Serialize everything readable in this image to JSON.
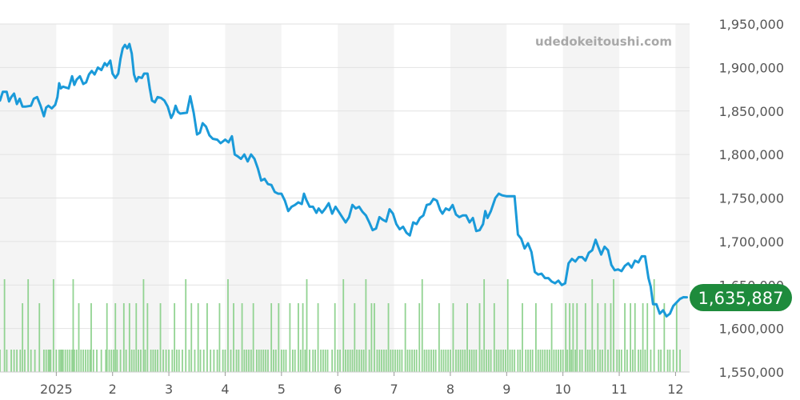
{
  "watermark": "udedokeitoushi.com",
  "colors": {
    "price_line": "#1a9ad9",
    "volume_bar": "#92d392",
    "band": "#f4f4f4",
    "grid": "#e2e2e2",
    "badge": "#1e8b3c"
  },
  "chart_data": {
    "type": "line",
    "title": "",
    "xlabel": "",
    "ylabel": "",
    "ylim": [
      1550000,
      1950000
    ],
    "y_ticks": [
      "1,950,000",
      "1,900,000",
      "1,850,000",
      "1,800,000",
      "1,750,000",
      "1,700,000",
      "1,650,000",
      "1,600,000",
      "1,550,000"
    ],
    "y_tick_values": [
      1950000,
      1900000,
      1850000,
      1800000,
      1750000,
      1700000,
      1650000,
      1600000,
      1550000
    ],
    "x_range": [
      0,
      12.25
    ],
    "x_ticks": [
      {
        "label": "2025",
        "pos": 1.0
      },
      {
        "label": "2",
        "pos": 2.0
      },
      {
        "label": "3",
        "pos": 3.0
      },
      {
        "label": "4",
        "pos": 4.0
      },
      {
        "label": "5",
        "pos": 5.0
      },
      {
        "label": "6",
        "pos": 6.0
      },
      {
        "label": "7",
        "pos": 7.0
      },
      {
        "label": "8",
        "pos": 8.0
      },
      {
        "label": "9",
        "pos": 9.0
      },
      {
        "label": "10",
        "pos": 10.0
      },
      {
        "label": "11",
        "pos": 11.0
      },
      {
        "label": "12",
        "pos": 12.0
      }
    ],
    "grid": true,
    "last_value": "1,635,887",
    "series": [
      {
        "points": [
          [
            0.0,
            1862000
          ],
          [
            0.05,
            1872000
          ],
          [
            0.12,
            1872000
          ],
          [
            0.16,
            1861000
          ],
          [
            0.2,
            1866000
          ],
          [
            0.25,
            1870000
          ],
          [
            0.3,
            1858000
          ],
          [
            0.35,
            1864000
          ],
          [
            0.4,
            1855000
          ],
          [
            0.45,
            1855000
          ],
          [
            0.55,
            1856000
          ],
          [
            0.6,
            1864000
          ],
          [
            0.66,
            1866000
          ],
          [
            0.72,
            1856000
          ],
          [
            0.78,
            1844000
          ],
          [
            0.82,
            1854000
          ],
          [
            0.86,
            1856000
          ],
          [
            0.92,
            1853000
          ],
          [
            0.98,
            1857000
          ],
          [
            1.02,
            1866000
          ],
          [
            1.05,
            1882000
          ],
          [
            1.08,
            1876000
          ],
          [
            1.12,
            1878000
          ],
          [
            1.22,
            1876000
          ],
          [
            1.28,
            1890000
          ],
          [
            1.32,
            1880000
          ],
          [
            1.36,
            1886000
          ],
          [
            1.42,
            1890000
          ],
          [
            1.48,
            1881000
          ],
          [
            1.53,
            1883000
          ],
          [
            1.58,
            1892000
          ],
          [
            1.63,
            1896000
          ],
          [
            1.68,
            1892000
          ],
          [
            1.74,
            1900000
          ],
          [
            1.8,
            1897000
          ],
          [
            1.86,
            1905000
          ],
          [
            1.9,
            1902000
          ],
          [
            1.96,
            1908000
          ],
          [
            2.0,
            1893000
          ],
          [
            2.05,
            1888000
          ],
          [
            2.1,
            1893000
          ],
          [
            2.14,
            1910000
          ],
          [
            2.18,
            1922000
          ],
          [
            2.22,
            1926000
          ],
          [
            2.26,
            1922000
          ],
          [
            2.3,
            1927000
          ],
          [
            2.34,
            1916000
          ],
          [
            2.38,
            1892000
          ],
          [
            2.42,
            1884000
          ],
          [
            2.46,
            1889000
          ],
          [
            2.52,
            1888000
          ],
          [
            2.56,
            1893000
          ],
          [
            2.62,
            1893000
          ],
          [
            2.66,
            1876000
          ],
          [
            2.7,
            1862000
          ],
          [
            2.75,
            1860000
          ],
          [
            2.8,
            1866000
          ],
          [
            2.86,
            1865000
          ],
          [
            2.92,
            1862000
          ],
          [
            2.98,
            1855000
          ],
          [
            3.04,
            1842000
          ],
          [
            3.08,
            1847000
          ],
          [
            3.12,
            1856000
          ],
          [
            3.16,
            1849000
          ],
          [
            3.2,
            1847000
          ],
          [
            3.32,
            1848000
          ],
          [
            3.38,
            1867000
          ],
          [
            3.44,
            1848000
          ],
          [
            3.5,
            1823000
          ],
          [
            3.55,
            1825000
          ],
          [
            3.6,
            1836000
          ],
          [
            3.66,
            1832000
          ],
          [
            3.72,
            1822000
          ],
          [
            3.78,
            1818000
          ],
          [
            3.86,
            1817000
          ],
          [
            3.92,
            1813000
          ],
          [
            4.0,
            1817000
          ],
          [
            4.06,
            1814000
          ],
          [
            4.12,
            1821000
          ],
          [
            4.17,
            1800000
          ],
          [
            4.22,
            1798000
          ],
          [
            4.28,
            1795000
          ],
          [
            4.34,
            1800000
          ],
          [
            4.4,
            1792000
          ],
          [
            4.46,
            1800000
          ],
          [
            4.52,
            1795000
          ],
          [
            4.58,
            1784000
          ],
          [
            4.64,
            1770000
          ],
          [
            4.7,
            1772000
          ],
          [
            4.76,
            1766000
          ],
          [
            4.82,
            1765000
          ],
          [
            4.88,
            1757000
          ],
          [
            4.94,
            1755000
          ],
          [
            5.0,
            1755000
          ],
          [
            5.06,
            1747000
          ],
          [
            5.12,
            1735000
          ],
          [
            5.18,
            1740000
          ],
          [
            5.24,
            1742000
          ],
          [
            5.3,
            1745000
          ],
          [
            5.36,
            1743000
          ],
          [
            5.4,
            1755000
          ],
          [
            5.44,
            1748000
          ],
          [
            5.5,
            1740000
          ],
          [
            5.56,
            1740000
          ],
          [
            5.62,
            1733000
          ],
          [
            5.66,
            1738000
          ],
          [
            5.72,
            1733000
          ],
          [
            5.78,
            1738000
          ],
          [
            5.84,
            1744000
          ],
          [
            5.9,
            1732000
          ],
          [
            5.96,
            1740000
          ],
          [
            6.02,
            1734000
          ],
          [
            6.08,
            1728000
          ],
          [
            6.14,
            1722000
          ],
          [
            6.2,
            1728000
          ],
          [
            6.26,
            1742000
          ],
          [
            6.32,
            1738000
          ],
          [
            6.38,
            1740000
          ],
          [
            6.44,
            1734000
          ],
          [
            6.5,
            1730000
          ],
          [
            6.56,
            1722000
          ],
          [
            6.62,
            1713000
          ],
          [
            6.68,
            1715000
          ],
          [
            6.74,
            1728000
          ],
          [
            6.8,
            1725000
          ],
          [
            6.86,
            1723000
          ],
          [
            6.92,
            1737000
          ],
          [
            6.98,
            1732000
          ],
          [
            7.04,
            1720000
          ],
          [
            7.1,
            1714000
          ],
          [
            7.16,
            1717000
          ],
          [
            7.22,
            1710000
          ],
          [
            7.28,
            1707000
          ],
          [
            7.34,
            1722000
          ],
          [
            7.4,
            1720000
          ],
          [
            7.46,
            1727000
          ],
          [
            7.52,
            1730000
          ],
          [
            7.58,
            1742000
          ],
          [
            7.64,
            1743000
          ],
          [
            7.7,
            1749000
          ],
          [
            7.76,
            1747000
          ],
          [
            7.82,
            1736000
          ],
          [
            7.86,
            1732000
          ],
          [
            7.92,
            1738000
          ],
          [
            7.98,
            1736000
          ],
          [
            8.04,
            1742000
          ],
          [
            8.1,
            1731000
          ],
          [
            8.16,
            1728000
          ],
          [
            8.22,
            1730000
          ],
          [
            8.28,
            1730000
          ],
          [
            8.34,
            1722000
          ],
          [
            8.4,
            1727000
          ],
          [
            8.46,
            1712000
          ],
          [
            8.52,
            1713000
          ],
          [
            8.58,
            1720000
          ],
          [
            8.62,
            1735000
          ],
          [
            8.66,
            1727000
          ],
          [
            8.72,
            1735000
          ],
          [
            8.8,
            1750000
          ],
          [
            8.86,
            1755000
          ],
          [
            8.92,
            1753000
          ],
          [
            9.0,
            1752000
          ],
          [
            9.08,
            1752000
          ],
          [
            9.14,
            1752000
          ],
          [
            9.2,
            1708000
          ],
          [
            9.26,
            1703000
          ],
          [
            9.32,
            1692000
          ],
          [
            9.38,
            1698000
          ],
          [
            9.44,
            1688000
          ],
          [
            9.5,
            1665000
          ],
          [
            9.56,
            1662000
          ],
          [
            9.62,
            1663000
          ],
          [
            9.68,
            1658000
          ],
          [
            9.74,
            1658000
          ],
          [
            9.8,
            1654000
          ],
          [
            9.86,
            1652000
          ],
          [
            9.92,
            1655000
          ],
          [
            9.98,
            1650000
          ],
          [
            10.04,
            1652000
          ],
          [
            10.1,
            1675000
          ],
          [
            10.16,
            1680000
          ],
          [
            10.22,
            1677000
          ],
          [
            10.28,
            1682000
          ],
          [
            10.34,
            1682000
          ],
          [
            10.4,
            1678000
          ],
          [
            10.46,
            1687000
          ],
          [
            10.52,
            1690000
          ],
          [
            10.58,
            1702000
          ],
          [
            10.62,
            1695000
          ],
          [
            10.68,
            1685000
          ],
          [
            10.74,
            1694000
          ],
          [
            10.8,
            1690000
          ],
          [
            10.86,
            1673000
          ],
          [
            10.92,
            1667000
          ],
          [
            10.98,
            1668000
          ],
          [
            11.04,
            1666000
          ],
          [
            11.1,
            1672000
          ],
          [
            11.16,
            1675000
          ],
          [
            11.22,
            1670000
          ],
          [
            11.28,
            1678000
          ],
          [
            11.34,
            1676000
          ],
          [
            11.4,
            1683000
          ],
          [
            11.46,
            1683000
          ],
          [
            11.52,
            1658000
          ],
          [
            11.56,
            1648000
          ],
          [
            11.6,
            1628000
          ],
          [
            11.66,
            1628000
          ],
          [
            11.72,
            1617000
          ],
          [
            11.78,
            1621000
          ],
          [
            11.84,
            1614000
          ],
          [
            11.9,
            1617000
          ],
          [
            11.96,
            1626000
          ],
          [
            12.02,
            1630000
          ],
          [
            12.08,
            1634000
          ],
          [
            12.14,
            1636000
          ],
          [
            12.2,
            1635887
          ]
        ]
      },
      {
        "name": "volume",
        "type": "bar",
        "tall_x": [
          0.08,
          0.5,
          0.95,
          1.3,
          2.55,
          3.3,
          4.05,
          5.45,
          6.1,
          6.5,
          7.5,
          8.6,
          9.02,
          10.52,
          10.9,
          11.62
        ],
        "mid_x": [
          0.4,
          0.7,
          1.4,
          1.62,
          1.9,
          2.05,
          2.2,
          2.3,
          2.42,
          2.62,
          2.85,
          3.1,
          3.4,
          3.52,
          3.68,
          3.9,
          4.15,
          4.3,
          4.5,
          4.82,
          4.95,
          5.15,
          5.3,
          5.38,
          5.65,
          5.95,
          6.3,
          6.6,
          6.65,
          6.9,
          7.2,
          7.45,
          7.8,
          8.05,
          8.3,
          8.52,
          8.78,
          9.28,
          9.52,
          9.8,
          10.05,
          10.12,
          10.18,
          10.25,
          10.4,
          10.62,
          10.75,
          10.85,
          11.1,
          11.2,
          11.28,
          11.42,
          11.5,
          11.8,
          12.02
        ],
        "low_x": [
          0.0,
          0.12,
          0.2,
          0.25,
          0.3,
          0.36,
          0.44,
          0.55,
          0.62,
          0.78,
          0.82,
          0.86,
          0.88,
          0.9,
          1.0,
          1.05,
          1.08,
          1.1,
          1.12,
          1.16,
          1.2,
          1.24,
          1.28,
          1.32,
          1.36,
          1.44,
          1.48,
          1.52,
          1.56,
          1.6,
          1.66,
          1.72,
          1.8,
          1.88,
          1.94,
          1.98,
          2.02,
          2.08,
          2.14,
          2.24,
          2.34,
          2.38,
          2.46,
          2.5,
          2.58,
          2.68,
          2.72,
          2.76,
          2.8,
          2.9,
          2.95,
          3.0,
          3.06,
          3.14,
          3.18,
          3.24,
          3.36,
          3.46,
          3.56,
          3.62,
          3.74,
          3.8,
          3.86,
          3.96,
          4.0,
          4.1,
          4.2,
          4.24,
          4.34,
          4.38,
          4.42,
          4.46,
          4.56,
          4.6,
          4.64,
          4.68,
          4.72,
          4.76,
          4.86,
          4.9,
          5.0,
          5.04,
          5.08,
          5.2,
          5.24,
          5.34,
          5.42,
          5.5,
          5.56,
          5.6,
          5.7,
          5.74,
          5.78,
          5.82,
          5.9,
          6.0,
          6.04,
          6.14,
          6.18,
          6.22,
          6.26,
          6.34,
          6.38,
          6.42,
          6.46,
          6.56,
          6.7,
          6.74,
          6.78,
          6.82,
          6.86,
          6.94,
          6.98,
          7.02,
          7.06,
          7.1,
          7.14,
          7.24,
          7.28,
          7.32,
          7.36,
          7.4,
          7.54,
          7.58,
          7.62,
          7.66,
          7.7,
          7.74,
          7.84,
          7.88,
          7.92,
          7.96,
          8.0,
          8.1,
          8.14,
          8.18,
          8.22,
          8.26,
          8.34,
          8.38,
          8.42,
          8.46,
          8.56,
          8.64,
          8.68,
          8.72,
          8.82,
          8.86,
          8.9,
          8.94,
          8.98,
          9.06,
          9.1,
          9.14,
          9.2,
          9.24,
          9.34,
          9.38,
          9.42,
          9.46,
          9.56,
          9.6,
          9.64,
          9.68,
          9.72,
          9.76,
          9.84,
          9.88,
          9.92,
          9.96,
          10.0,
          10.08,
          10.15,
          10.22,
          10.3,
          10.34,
          10.44,
          10.48,
          10.56,
          10.66,
          10.7,
          10.8,
          10.96,
          11.0,
          11.04,
          11.14,
          11.24,
          11.34,
          11.38,
          11.46,
          11.56,
          11.7,
          11.74,
          11.86,
          11.9,
          11.96,
          12.08
        ]
      }
    ]
  }
}
